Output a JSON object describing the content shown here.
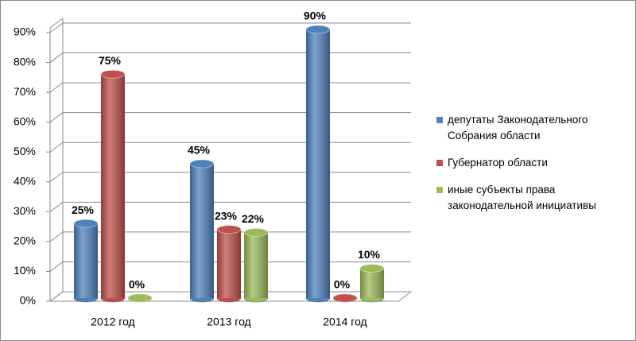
{
  "chart_data": {
    "type": "bar3d",
    "categories": [
      "2012 год",
      "2013 год",
      "2014 год"
    ],
    "series": [
      {
        "name": "депутаты Законодательного Собрания области",
        "color": "#4f81bd",
        "values": [
          25,
          45,
          90
        ],
        "value_labels": [
          "25%",
          "45%",
          "90%"
        ]
      },
      {
        "name": "Губернатор области",
        "color": "#c0504d",
        "values": [
          75,
          23,
          0
        ],
        "value_labels": [
          "75%",
          "23%",
          "0%"
        ]
      },
      {
        "name": "иные субъекты права законодательной инициативы",
        "color": "#9bbb59",
        "values": [
          0,
          22,
          10
        ],
        "value_labels": [
          "0%",
          "22%",
          "10%"
        ]
      }
    ],
    "ylim": [
      0,
      90
    ],
    "yticks": [
      {
        "value": 0,
        "label": "0%"
      },
      {
        "value": 10,
        "label": "10%"
      },
      {
        "value": 20,
        "label": "20%"
      },
      {
        "value": 30,
        "label": "30%"
      },
      {
        "value": 40,
        "label": "40%"
      },
      {
        "value": 50,
        "label": "50%"
      },
      {
        "value": 60,
        "label": "60%"
      },
      {
        "value": 70,
        "label": "70%"
      },
      {
        "value": 80,
        "label": "80%"
      },
      {
        "value": 90,
        "label": "90%"
      }
    ],
    "grid": true,
    "legend": "right"
  }
}
